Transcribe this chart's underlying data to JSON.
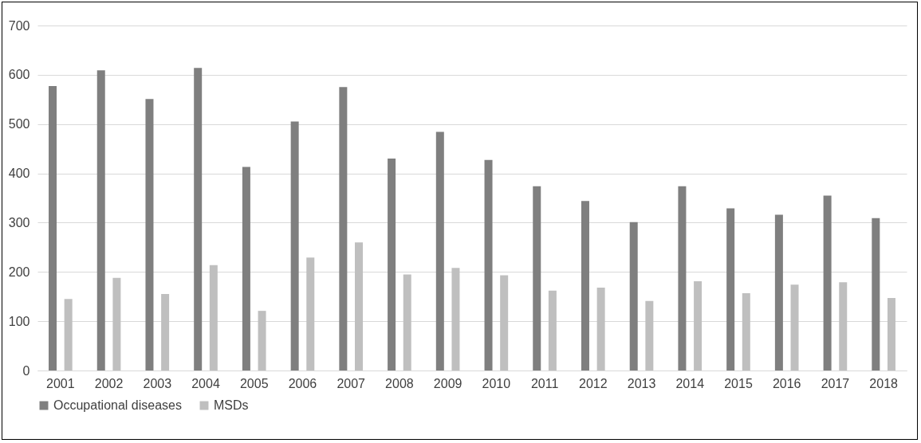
{
  "chart_data": {
    "type": "bar",
    "categories": [
      "2001",
      "2002",
      "2003",
      "2004",
      "2005",
      "2006",
      "2007",
      "2008",
      "2009",
      "2010",
      "2011",
      "2012",
      "2013",
      "2014",
      "2015",
      "2016",
      "2017",
      "2018"
    ],
    "series": [
      {
        "name": "Occupational diseases",
        "color": "#7f7f7f",
        "values": [
          577,
          609,
          551,
          614,
          413,
          505,
          575,
          430,
          484,
          427,
          374,
          344,
          301,
          374,
          329,
          316,
          355,
          309
        ]
      },
      {
        "name": "MSDs",
        "color": "#bfbfbf",
        "values": [
          145,
          188,
          155,
          214,
          121,
          229,
          260,
          195,
          208,
          193,
          162,
          168,
          141,
          181,
          157,
          174,
          179,
          147
        ]
      }
    ],
    "ylim": [
      0,
      700
    ],
    "yticks": [
      0,
      100,
      200,
      300,
      400,
      500,
      600,
      700
    ],
    "grid": "y",
    "legend": "bottom"
  }
}
